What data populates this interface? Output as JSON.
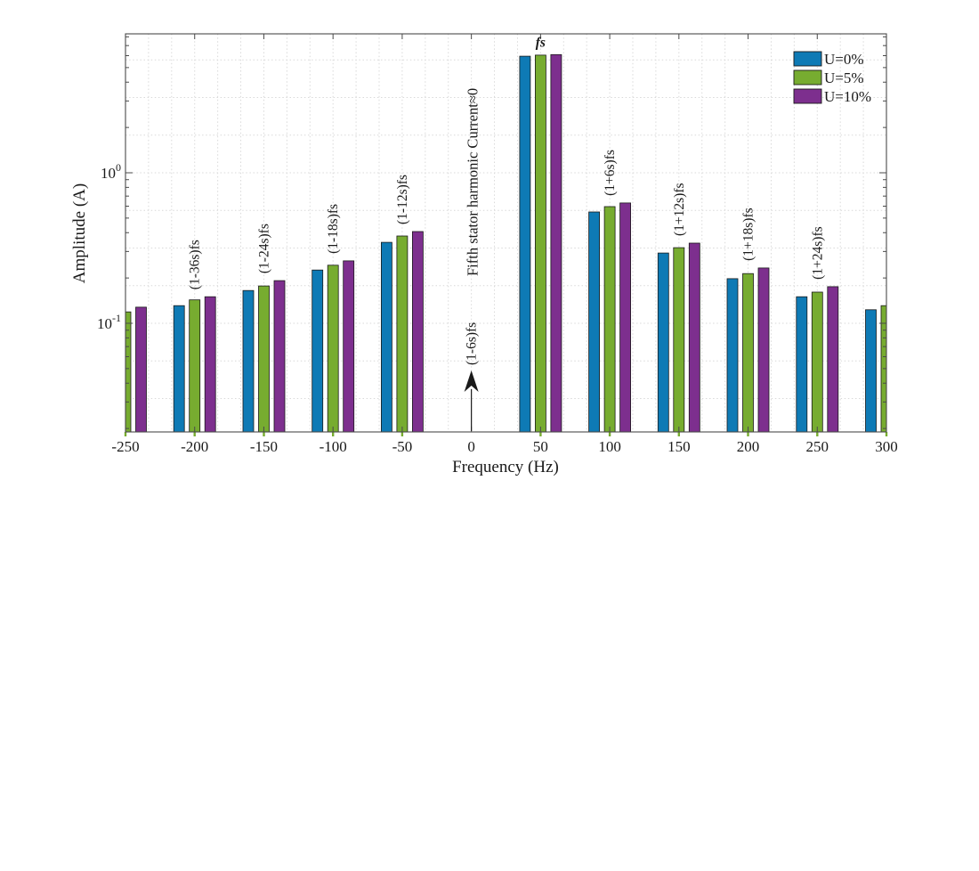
{
  "figure": {
    "background": "#ffffff",
    "frame_color": "#4a4a4a",
    "grid_color": "#d9d9d9",
    "text_color": "#1a1a1a"
  },
  "chart_data": {
    "type": "bar",
    "title": "",
    "xlabel": "Frequency (Hz)",
    "ylabel": "Amplitude (A)",
    "y_scale": "log",
    "grid": "fine dotted, on",
    "legend_position": "top-right inside",
    "xlim": [
      -250,
      300
    ],
    "ylim": [
      0.019,
      8.4
    ],
    "x_ticks": [
      -250,
      -200,
      -150,
      -100,
      -50,
      0,
      50,
      100,
      150,
      200,
      250,
      300
    ],
    "y_ticks": [
      {
        "mantissa": "10",
        "exponent": "0",
        "value": 1
      },
      {
        "mantissa": "10",
        "exponent": "-1",
        "value": 0.1
      }
    ],
    "categories": [
      -250,
      -200,
      -150,
      -100,
      -50,
      50,
      100,
      150,
      200,
      250,
      300
    ],
    "series": [
      {
        "name": "U=0%",
        "color": "#0e7ab5",
        "values": [
          null,
          0.131,
          0.165,
          0.226,
          0.345,
          5.95,
          0.549,
          0.293,
          0.198,
          0.15,
          0.123
        ]
      },
      {
        "name": "U=5%",
        "color": "#77ac30",
        "values": [
          0.119,
          0.143,
          0.177,
          0.243,
          0.38,
          6.05,
          0.596,
          0.318,
          0.214,
          0.161,
          0.131
        ]
      },
      {
        "name": "U=10%",
        "color": "#7d2f8e",
        "values": [
          0.128,
          0.15,
          0.192,
          0.26,
          0.407,
          6.1,
          0.63,
          0.341,
          0.233,
          0.175,
          null
        ]
      }
    ],
    "group_labels": [
      {
        "hz": -200,
        "text": "(1-36s)fs"
      },
      {
        "hz": -150,
        "text": "(1-24s)fs"
      },
      {
        "hz": -100,
        "text": "(1-18s)fs"
      },
      {
        "hz": -50,
        "text": "(1-12s)fs"
      },
      {
        "hz": 100,
        "text": "(1+6s)fs"
      },
      {
        "hz": 150,
        "text": "(1+12s)fs"
      },
      {
        "hz": 200,
        "text": "(1+18s)fs"
      },
      {
        "hz": 250,
        "text": "(1+24s)fs"
      }
    ],
    "annotations": [
      {
        "type": "peak-label",
        "hz": 50,
        "text": "fs",
        "style": "italic"
      },
      {
        "type": "arrow-label",
        "hz": 0,
        "text": "(1-6s)fs"
      },
      {
        "type": "note",
        "hz": 0,
        "text": "Fifth stator harmonic Current≈0"
      }
    ]
  }
}
